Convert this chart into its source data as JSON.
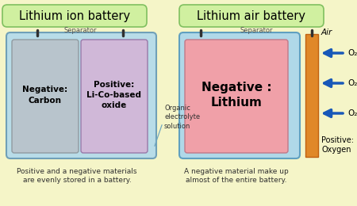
{
  "bg_color": "#f5f5c8",
  "title_left": "Lithium ion battery",
  "title_right": "Lithium air battery",
  "title_bg": "#d0f0a0",
  "title_border": "#80c060",
  "caption_left": "Positive and a negative materials\nare evenly stored in a battery.",
  "caption_right": "A negative material make up\nalmost of the entire battery.",
  "separator_label": "Separator",
  "organic_label": "Organic\nelectrolyte\nsolution",
  "air_label": "Air",
  "positive_oxygen_label": "Positive:\nOxygen",
  "neg_carbon_label": "Negative:\nCarbon",
  "pos_licobased_label": "Positive:\nLi-Co-based\noxide",
  "neg_lithium_label": "Negative :\nLithium",
  "o2_label": "O₂",
  "left_battery_outer_color": "#b8dce8",
  "left_battery_border": "#70a0b8",
  "neg_carbon_color": "#b8c4cc",
  "neg_carbon_border": "#909aa0",
  "pos_licobased_color": "#d0b8d8",
  "pos_licobased_border": "#9878a8",
  "right_battery_outer_color": "#b0d8e8",
  "right_battery_border": "#60a0c0",
  "neg_lithium_color": "#f0a0a8",
  "neg_lithium_border": "#c07888",
  "air_electrode_color": "#e08828",
  "air_electrode_border": "#c06010",
  "arrow_color": "#1858b8",
  "pin_color": "#303030",
  "sep_text_color": "#505050",
  "caption_color": "#303030",
  "organic_line_color": "#70a8c0"
}
